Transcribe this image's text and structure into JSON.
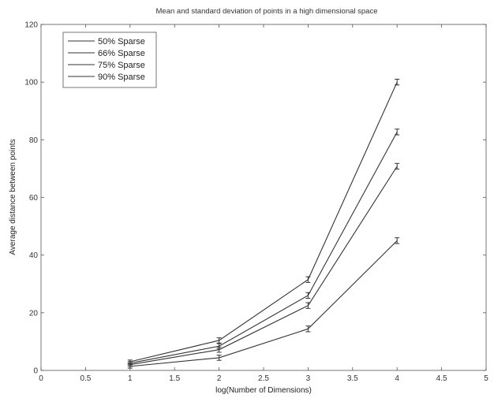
{
  "chart_data": {
    "type": "line",
    "title": "Mean and standard deviation of points in a high dimensional space",
    "xlabel": "log(Number of Dimensions)",
    "ylabel": "Average distance between points",
    "xlim": [
      0,
      5
    ],
    "ylim": [
      0,
      120
    ],
    "x_ticks": [
      0,
      0.5,
      1,
      1.5,
      2,
      2.5,
      3,
      3.5,
      4,
      4.5,
      5
    ],
    "x_tick_labels": [
      "0",
      "0.5",
      "1",
      "1.5",
      "2",
      "2.5",
      "3",
      "3.5",
      "4",
      "4.5",
      "5"
    ],
    "y_ticks": [
      0,
      20,
      40,
      60,
      80,
      100,
      120
    ],
    "y_tick_labels": [
      "0",
      "20",
      "40",
      "60",
      "80",
      "100",
      "120"
    ],
    "grid": false,
    "legend_position": "top-left",
    "x": [
      1,
      2,
      3,
      4
    ],
    "series": [
      {
        "name": "50% Sparse",
        "values": [
          1.4,
          4.4,
          14.4,
          45.0
        ],
        "errors": [
          0.6,
          0.9,
          1.0,
          1.0
        ]
      },
      {
        "name": "66% Sparse",
        "values": [
          2.0,
          7.2,
          22.5,
          70.8
        ],
        "errors": [
          0.6,
          0.9,
          1.0,
          1.0
        ]
      },
      {
        "name": "75% Sparse",
        "values": [
          2.5,
          8.4,
          26.0,
          82.7
        ],
        "errors": [
          0.6,
          0.9,
          1.0,
          1.0
        ]
      },
      {
        "name": "90% Sparse",
        "values": [
          3.0,
          10.4,
          31.5,
          100.0
        ],
        "errors": [
          0.6,
          0.9,
          1.0,
          1.0
        ]
      }
    ],
    "line_color": "#333333"
  }
}
